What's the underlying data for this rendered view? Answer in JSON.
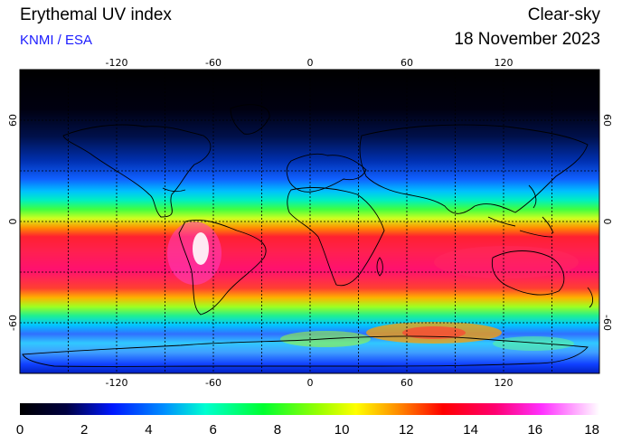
{
  "header": {
    "title": "Erythemal UV index",
    "credit": "KNMI / ESA",
    "condition": "Clear-sky",
    "date": "18 November 2023"
  },
  "map": {
    "lon_ticks": [
      "-120",
      "-60",
      "0",
      "60",
      "120"
    ],
    "lat_ticks": [
      "60",
      "0",
      "-60"
    ]
  },
  "colorbar": {
    "labels": [
      "0",
      "2",
      "4",
      "6",
      "8",
      "10",
      "12",
      "14",
      "16",
      "18"
    ]
  }
}
